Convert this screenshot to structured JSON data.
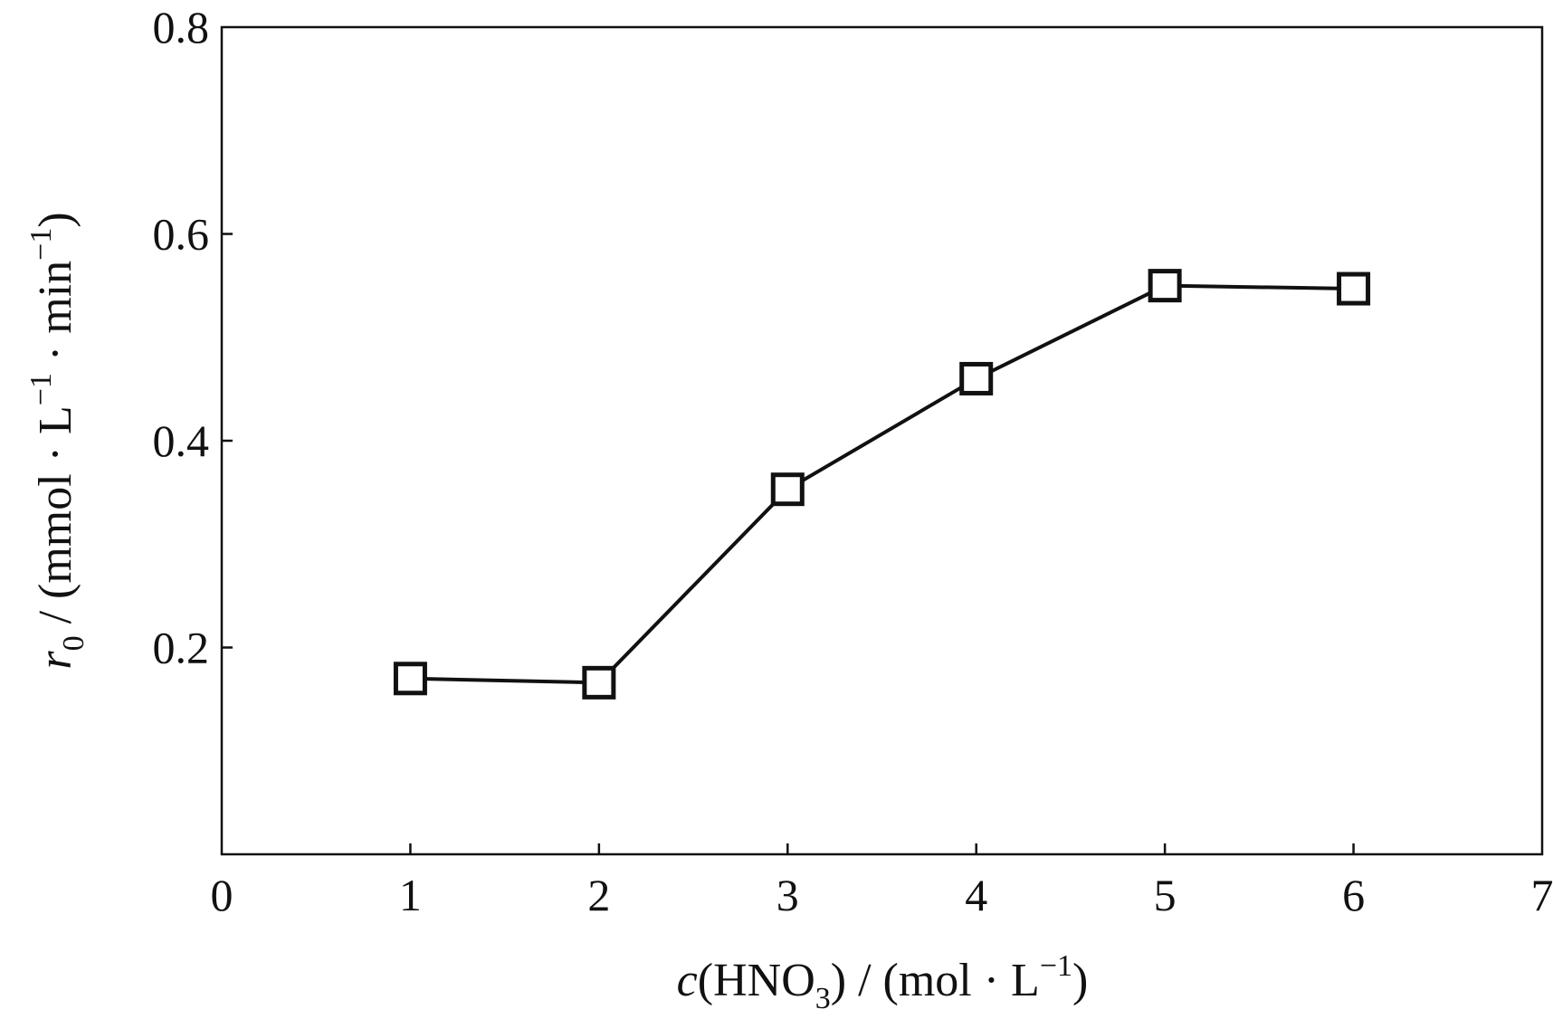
{
  "chart_data": {
    "type": "line",
    "title": "",
    "x": [
      1,
      2,
      3,
      4,
      5,
      6
    ],
    "series": [
      {
        "marker": "open-square",
        "color": "#111111",
        "values": [
          0.17,
          0.166,
          0.353,
          0.46,
          0.55,
          0.547
        ]
      }
    ],
    "xlim": [
      0,
      7
    ],
    "ylim": [
      0,
      0.8
    ],
    "xticks": [
      0,
      1,
      2,
      3,
      4,
      5,
      6,
      7
    ],
    "xtick_labels": [
      "0",
      "1",
      "2",
      "3",
      "4",
      "5",
      "6",
      "7"
    ],
    "yticks": [
      0.2,
      0.4,
      0.6,
      0.8
    ],
    "ytick_labels": [
      "0.2",
      "0.4",
      "0.6",
      "0.8"
    ],
    "xlabel": {
      "var": "c",
      "text_before_sub": "(HNO",
      "sub": "3",
      "text_after_sub": ") / (mol · L",
      "sup": "−1",
      "close": ")"
    },
    "ylabel": {
      "var": "r",
      "var_sub": "0",
      "part1": " / (mmol · L",
      "sup1": "−1",
      "part2": " · min",
      "sup2": "−1",
      "close": ")"
    },
    "grid": false,
    "legend": "none"
  }
}
